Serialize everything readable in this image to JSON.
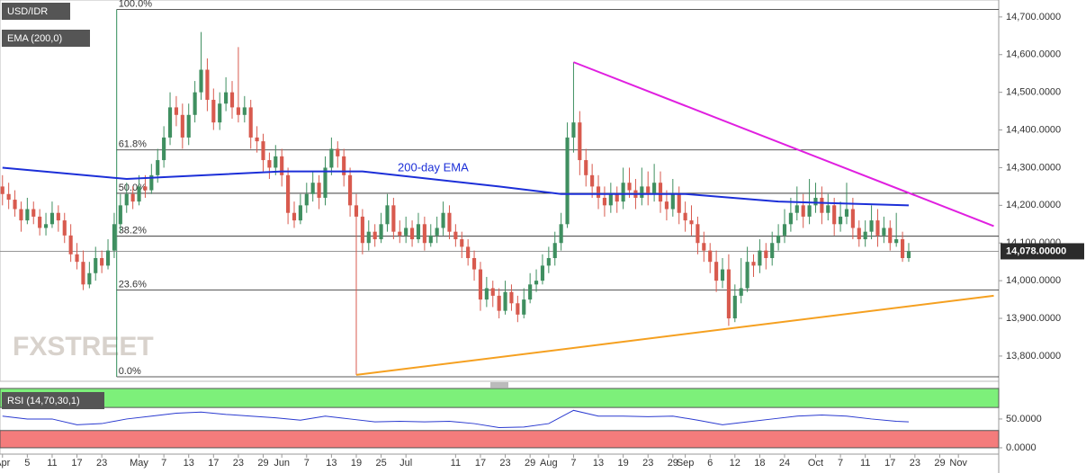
{
  "chart_data": {
    "type": "candlestick",
    "title": "USD/IDR",
    "watermark": "FXSTREET",
    "up_color": "#3f8f60",
    "down_color": "#d85a4e",
    "ylim": [
      13733,
      14745
    ],
    "yticks": [
      {
        "value": 13800,
        "label": "13,800.0000"
      },
      {
        "value": 13900,
        "label": "13,900.0000"
      },
      {
        "value": 14000,
        "label": "14,000.0000"
      },
      {
        "value": 14100,
        "label": "14,100.0000"
      },
      {
        "value": 14200,
        "label": "14,200.0000"
      },
      {
        "value": 14300,
        "label": "14,300.0000"
      },
      {
        "value": 14400,
        "label": "14,400.0000"
      },
      {
        "value": 14500,
        "label": "14,500.0000"
      },
      {
        "value": 14600,
        "label": "14,600.0000"
      },
      {
        "value": 14700,
        "label": "14,700.0000"
      }
    ],
    "xlim": [
      -0.4,
      160.5
    ],
    "xticks": [
      {
        "value": 0,
        "label": "Apr"
      },
      {
        "value": 4,
        "label": "5"
      },
      {
        "value": 8,
        "label": "11"
      },
      {
        "value": 12,
        "label": "17"
      },
      {
        "value": 16,
        "label": "23"
      },
      {
        "value": 22,
        "label": "May"
      },
      {
        "value": 26,
        "label": "7"
      },
      {
        "value": 30,
        "label": "13"
      },
      {
        "value": 34,
        "label": "17"
      },
      {
        "value": 38,
        "label": "23"
      },
      {
        "value": 42,
        "label": "29"
      },
      {
        "value": 45,
        "label": "Jun"
      },
      {
        "value": 49,
        "label": "7"
      },
      {
        "value": 53,
        "label": "13"
      },
      {
        "value": 57,
        "label": "19"
      },
      {
        "value": 61,
        "label": "25"
      },
      {
        "value": 65,
        "label": "Jul"
      },
      {
        "value": 73,
        "label": "11"
      },
      {
        "value": 77,
        "label": "17"
      },
      {
        "value": 81,
        "label": "23"
      },
      {
        "value": 85,
        "label": "29"
      },
      {
        "value": 88,
        "label": "Aug"
      },
      {
        "value": 92,
        "label": "7"
      },
      {
        "value": 96,
        "label": "13"
      },
      {
        "value": 100,
        "label": "19"
      },
      {
        "value": 104,
        "label": "23"
      },
      {
        "value": 108,
        "label": "29"
      },
      {
        "value": 110,
        "label": "Sep"
      },
      {
        "value": 114,
        "label": "6"
      },
      {
        "value": 118,
        "label": "12"
      },
      {
        "value": 122,
        "label": "18"
      },
      {
        "value": 126,
        "label": "24"
      },
      {
        "value": 131,
        "label": "Oct"
      },
      {
        "value": 135,
        "label": "7"
      },
      {
        "value": 139,
        "label": "11"
      },
      {
        "value": 143,
        "label": "17"
      },
      {
        "value": 147,
        "label": "23"
      },
      {
        "value": 151,
        "label": "29"
      },
      {
        "value": 154,
        "label": "Nov"
      }
    ],
    "current_price": {
      "value": 14078,
      "label": "14,078.00000"
    },
    "candles": [
      [
        14250,
        14280,
        14200,
        14230
      ],
      [
        14230,
        14260,
        14190,
        14215
      ],
      [
        14215,
        14240,
        14170,
        14190
      ],
      [
        14190,
        14210,
        14130,
        14160
      ],
      [
        14160,
        14220,
        14150,
        14190
      ],
      [
        14190,
        14210,
        14150,
        14170
      ],
      [
        14170,
        14190,
        14120,
        14140
      ],
      [
        14140,
        14180,
        14120,
        14150
      ],
      [
        14150,
        14210,
        14140,
        14180
      ],
      [
        14180,
        14200,
        14130,
        14160
      ],
      [
        14160,
        14180,
        14100,
        14120
      ],
      [
        14120,
        14150,
        14050,
        14070
      ],
      [
        14070,
        14100,
        14030,
        14050
      ],
      [
        14050,
        14080,
        13975,
        13990
      ],
      [
        13990,
        14050,
        13980,
        14020
      ],
      [
        14020,
        14090,
        14000,
        14060
      ],
      [
        14060,
        14080,
        14020,
        14040
      ],
      [
        14040,
        14110,
        14030,
        14080
      ],
      [
        14080,
        14180,
        14060,
        14150
      ],
      [
        14150,
        14230,
        14130,
        14200
      ],
      [
        14200,
        14260,
        14180,
        14230
      ],
      [
        14230,
        14250,
        14190,
        14210
      ],
      [
        14210,
        14280,
        14200,
        14250
      ],
      [
        14250,
        14280,
        14220,
        14240
      ],
      [
        14240,
        14310,
        14230,
        14280
      ],
      [
        14280,
        14350,
        14260,
        14320
      ],
      [
        14320,
        14410,
        14300,
        14380
      ],
      [
        14380,
        14500,
        14360,
        14460
      ],
      [
        14460,
        14490,
        14410,
        14440
      ],
      [
        14440,
        14470,
        14350,
        14380
      ],
      [
        14380,
        14470,
        14360,
        14440
      ],
      [
        14440,
        14530,
        14420,
        14500
      ],
      [
        14500,
        14660,
        14480,
        14560
      ],
      [
        14560,
        14590,
        14450,
        14480
      ],
      [
        14480,
        14510,
        14400,
        14420
      ],
      [
        14420,
        14500,
        14400,
        14470
      ],
      [
        14470,
        14540,
        14450,
        14500
      ],
      [
        14500,
        14530,
        14430,
        14460
      ],
      [
        14460,
        14620,
        14420,
        14440
      ],
      [
        14440,
        14490,
        14420,
        14460
      ],
      [
        14460,
        14480,
        14350,
        14380
      ],
      [
        14380,
        14410,
        14340,
        14370
      ],
      [
        14370,
        14390,
        14290,
        14320
      ],
      [
        14320,
        14340,
        14270,
        14300
      ],
      [
        14300,
        14360,
        14280,
        14330
      ],
      [
        14330,
        14350,
        14250,
        14280
      ],
      [
        14280,
        14300,
        14150,
        14180
      ],
      [
        14180,
        14210,
        14140,
        14160
      ],
      [
        14160,
        14230,
        14150,
        14200
      ],
      [
        14200,
        14260,
        14180,
        14230
      ],
      [
        14230,
        14290,
        14210,
        14260
      ],
      [
        14260,
        14280,
        14190,
        14220
      ],
      [
        14220,
        14330,
        14200,
        14300
      ],
      [
        14300,
        14380,
        14280,
        14350
      ],
      [
        14350,
        14370,
        14300,
        14330
      ],
      [
        14330,
        14350,
        14250,
        14280
      ],
      [
        14280,
        14300,
        14170,
        14200
      ],
      [
        14200,
        14230,
        13750,
        14170
      ],
      [
        14170,
        14190,
        14070,
        14100
      ],
      [
        14100,
        14160,
        14080,
        14130
      ],
      [
        14130,
        14150,
        14090,
        14110
      ],
      [
        14110,
        14180,
        14100,
        14150
      ],
      [
        14150,
        14230,
        14130,
        14200
      ],
      [
        14200,
        14220,
        14110,
        14130
      ],
      [
        14130,
        14160,
        14100,
        14120
      ],
      [
        14120,
        14170,
        14100,
        14140
      ],
      [
        14140,
        14160,
        14090,
        14110
      ],
      [
        14110,
        14180,
        14100,
        14150
      ],
      [
        14150,
        14170,
        14080,
        14100
      ],
      [
        14100,
        14150,
        14090,
        14120
      ],
      [
        14120,
        14170,
        14100,
        14140
      ],
      [
        14140,
        14210,
        14120,
        14180
      ],
      [
        14180,
        14200,
        14110,
        14130
      ],
      [
        14130,
        14150,
        14090,
        14110
      ],
      [
        14110,
        14130,
        14060,
        14090
      ],
      [
        14090,
        14110,
        14040,
        14060
      ],
      [
        14060,
        14080,
        14000,
        14030
      ],
      [
        14030,
        14050,
        13920,
        13950
      ],
      [
        13950,
        14010,
        13930,
        13980
      ],
      [
        13980,
        14000,
        13930,
        13960
      ],
      [
        13960,
        13980,
        13900,
        13920
      ],
      [
        13920,
        14000,
        13910,
        13970
      ],
      [
        13970,
        13990,
        13920,
        13940
      ],
      [
        13940,
        13960,
        13890,
        13910
      ],
      [
        13910,
        13980,
        13900,
        13950
      ],
      [
        13950,
        14020,
        13940,
        13990
      ],
      [
        13990,
        14030,
        13970,
        14000
      ],
      [
        14000,
        14070,
        13990,
        14040
      ],
      [
        14040,
        14090,
        14020,
        14060
      ],
      [
        14060,
        14130,
        14040,
        14100
      ],
      [
        14100,
        14180,
        14080,
        14150
      ],
      [
        14150,
        14420,
        14140,
        14380
      ],
      [
        14380,
        14580,
        14340,
        14420
      ],
      [
        14420,
        14450,
        14280,
        14320
      ],
      [
        14320,
        14350,
        14250,
        14280
      ],
      [
        14280,
        14310,
        14220,
        14250
      ],
      [
        14250,
        14280,
        14190,
        14220
      ],
      [
        14220,
        14250,
        14170,
        14200
      ],
      [
        14200,
        14260,
        14180,
        14230
      ],
      [
        14230,
        14250,
        14180,
        14210
      ],
      [
        14210,
        14300,
        14190,
        14260
      ],
      [
        14260,
        14300,
        14220,
        14240
      ],
      [
        14240,
        14270,
        14190,
        14220
      ],
      [
        14220,
        14300,
        14200,
        14250
      ],
      [
        14250,
        14290,
        14200,
        14230
      ],
      [
        14230,
        14310,
        14210,
        14260
      ],
      [
        14260,
        14290,
        14180,
        14210
      ],
      [
        14210,
        14240,
        14160,
        14190
      ],
      [
        14190,
        14270,
        14170,
        14230
      ],
      [
        14230,
        14250,
        14150,
        14180
      ],
      [
        14180,
        14210,
        14130,
        14160
      ],
      [
        14160,
        14200,
        14120,
        14150
      ],
      [
        14150,
        14170,
        14070,
        14100
      ],
      [
        14100,
        14130,
        14050,
        14080
      ],
      [
        14080,
        14100,
        14020,
        14050
      ],
      [
        14050,
        14080,
        13970,
        14000
      ],
      [
        14000,
        14060,
        13980,
        14030
      ],
      [
        14030,
        14070,
        13880,
        13900
      ],
      [
        13900,
        13990,
        13890,
        13960
      ],
      [
        13960,
        14060,
        13940,
        13980
      ],
      [
        13980,
        14090,
        13970,
        14050
      ],
      [
        14050,
        14070,
        14010,
        14040
      ],
      [
        14040,
        14110,
        14020,
        14080
      ],
      [
        14080,
        14100,
        14030,
        14060
      ],
      [
        14060,
        14130,
        14040,
        14100
      ],
      [
        14100,
        14150,
        14080,
        14120
      ],
      [
        14120,
        14190,
        14100,
        14150
      ],
      [
        14150,
        14220,
        14130,
        14180
      ],
      [
        14180,
        14250,
        14160,
        14200
      ],
      [
        14200,
        14230,
        14140,
        14170
      ],
      [
        14170,
        14270,
        14150,
        14200
      ],
      [
        14200,
        14260,
        14180,
        14220
      ],
      [
        14220,
        14250,
        14150,
        14180
      ],
      [
        14180,
        14230,
        14160,
        14200
      ],
      [
        14200,
        14220,
        14120,
        14150
      ],
      [
        14150,
        14210,
        14130,
        14170
      ],
      [
        14170,
        14260,
        14150,
        14190
      ],
      [
        14190,
        14220,
        14110,
        14140
      ],
      [
        14140,
        14160,
        14090,
        14110
      ],
      [
        14110,
        14160,
        14090,
        14130
      ],
      [
        14130,
        14200,
        14110,
        14160
      ],
      [
        14160,
        14190,
        14090,
        14120
      ],
      [
        14120,
        14170,
        14100,
        14140
      ],
      [
        14140,
        14160,
        14080,
        14100
      ],
      [
        14100,
        14180,
        14090,
        14110
      ],
      [
        14110,
        14130,
        14050,
        14060
      ],
      [
        14060,
        14100,
        14050,
        14078
      ]
    ],
    "ema": {
      "name": "EMA (200,0)",
      "label": "200-day EMA",
      "color": "#1c2fd8",
      "x": [
        0,
        20,
        45,
        58,
        80,
        90,
        110,
        125,
        146
      ],
      "values": [
        14300,
        14270,
        14290,
        14290,
        14250,
        14230,
        14230,
        14210,
        14200
      ]
    },
    "trendlines": [
      {
        "color": "#e020e0",
        "x": [
          92,
          159.7
        ],
        "values": [
          14580,
          14145
        ]
      },
      {
        "color": "#f5a020",
        "x": [
          57,
          159.7
        ],
        "values": [
          13750,
          13960
        ]
      }
    ],
    "fib_start": 18.4,
    "fib_levels": [
      {
        "label": "100.0%",
        "value": 14720
      },
      {
        "label": "61.8%",
        "value": 14347
      },
      {
        "label": "50.0%",
        "value": 14232
      },
      {
        "label": "38.2%",
        "value": 14118
      },
      {
        "label": "23.6%",
        "value": 13975
      },
      {
        "label": "0.0%",
        "value": 13745
      }
    ],
    "rsi": {
      "name": "RSI (14,70,30,1)",
      "color": "#2a3ad0",
      "ylim": [
        -11,
        103
      ],
      "overbought": 70,
      "oversold": 30,
      "yticks": [
        {
          "value": 0,
          "label": "0.0000"
        },
        {
          "value": 50,
          "label": "50.0000"
        }
      ],
      "x": [
        0,
        4,
        8,
        12,
        16,
        20,
        24,
        28,
        32,
        36,
        40,
        44,
        48,
        52,
        56,
        60,
        64,
        68,
        72,
        76,
        80,
        84,
        88,
        92,
        96,
        100,
        104,
        108,
        112,
        116,
        120,
        124,
        128,
        132,
        136,
        140,
        144,
        146
      ],
      "values": [
        55,
        50,
        50,
        40,
        42,
        50,
        55,
        60,
        62,
        58,
        55,
        52,
        48,
        55,
        50,
        45,
        46,
        45,
        46,
        42,
        35,
        36,
        42,
        65,
        55,
        55,
        54,
        55,
        48,
        40,
        45,
        50,
        55,
        57,
        55,
        50,
        46,
        45
      ]
    }
  }
}
